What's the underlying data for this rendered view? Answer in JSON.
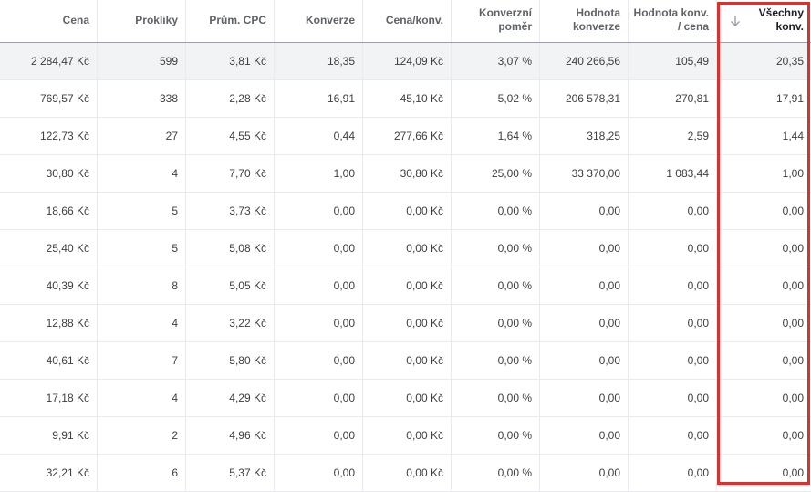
{
  "columns": [
    {
      "key": "cena",
      "label": "Cena"
    },
    {
      "key": "prokliky",
      "label": "Prokliky"
    },
    {
      "key": "prum_cpc",
      "label": "Prům. CPC"
    },
    {
      "key": "konverze",
      "label": "Konverze"
    },
    {
      "key": "cena_konv",
      "label": "Cena/konv."
    },
    {
      "key": "konv_pomer",
      "label": "Konverzní\npoměr"
    },
    {
      "key": "hodnota_konv",
      "label": "Hodnota\nkonverze"
    },
    {
      "key": "hodnota_cena",
      "label": "Hodnota konv.\n/ cena"
    },
    {
      "key": "vsechny_konv",
      "label": "Všechny\nkonv.",
      "sorted": "descending"
    }
  ],
  "rows": [
    [
      "2 284,47 Kč",
      "599",
      "3,81 Kč",
      "18,35",
      "124,09 Kč",
      "3,07 %",
      "240 266,56",
      "105,49",
      "20,35"
    ],
    [
      "769,57 Kč",
      "338",
      "2,28 Kč",
      "16,91",
      "45,10 Kč",
      "5,02 %",
      "206 578,31",
      "270,81",
      "17,91"
    ],
    [
      "122,73 Kč",
      "27",
      "4,55 Kč",
      "0,44",
      "277,66 Kč",
      "1,64 %",
      "318,25",
      "2,59",
      "1,44"
    ],
    [
      "30,80 Kč",
      "4",
      "7,70 Kč",
      "1,00",
      "30,80 Kč",
      "25,00 %",
      "33 370,00",
      "1 083,44",
      "1,00"
    ],
    [
      "18,66 Kč",
      "5",
      "3,73 Kč",
      "0,00",
      "0,00 Kč",
      "0,00 %",
      "0,00",
      "0,00",
      "0,00"
    ],
    [
      "25,40 Kč",
      "5",
      "5,08 Kč",
      "0,00",
      "0,00 Kč",
      "0,00 %",
      "0,00",
      "0,00",
      "0,00"
    ],
    [
      "40,39 Kč",
      "8",
      "5,05 Kč",
      "0,00",
      "0,00 Kč",
      "0,00 %",
      "0,00",
      "0,00",
      "0,00"
    ],
    [
      "12,88 Kč",
      "4",
      "3,22 Kč",
      "0,00",
      "0,00 Kč",
      "0,00 %",
      "0,00",
      "0,00",
      "0,00"
    ],
    [
      "40,61 Kč",
      "7",
      "5,80 Kč",
      "0,00",
      "0,00 Kč",
      "0,00 %",
      "0,00",
      "0,00",
      "0,00"
    ],
    [
      "17,18 Kč",
      "4",
      "4,29 Kč",
      "0,00",
      "0,00 Kč",
      "0,00 %",
      "0,00",
      "0,00",
      "0,00"
    ],
    [
      "9,91 Kč",
      "2",
      "4,96 Kč",
      "0,00",
      "0,00 Kč",
      "0,00 %",
      "0,00",
      "0,00",
      "0,00"
    ],
    [
      "32,21 Kč",
      "6",
      "5,37 Kč",
      "0,00",
      "0,00 Kč",
      "0,00 %",
      "0,00",
      "0,00",
      "0,00"
    ]
  ],
  "icons": {
    "sort": "arrow-down-icon"
  },
  "colors": {
    "highlight_border": "#d93030",
    "hover_row": "#f1f3f4",
    "header_text": "#5f6368",
    "cell_text": "#3c4043"
  }
}
